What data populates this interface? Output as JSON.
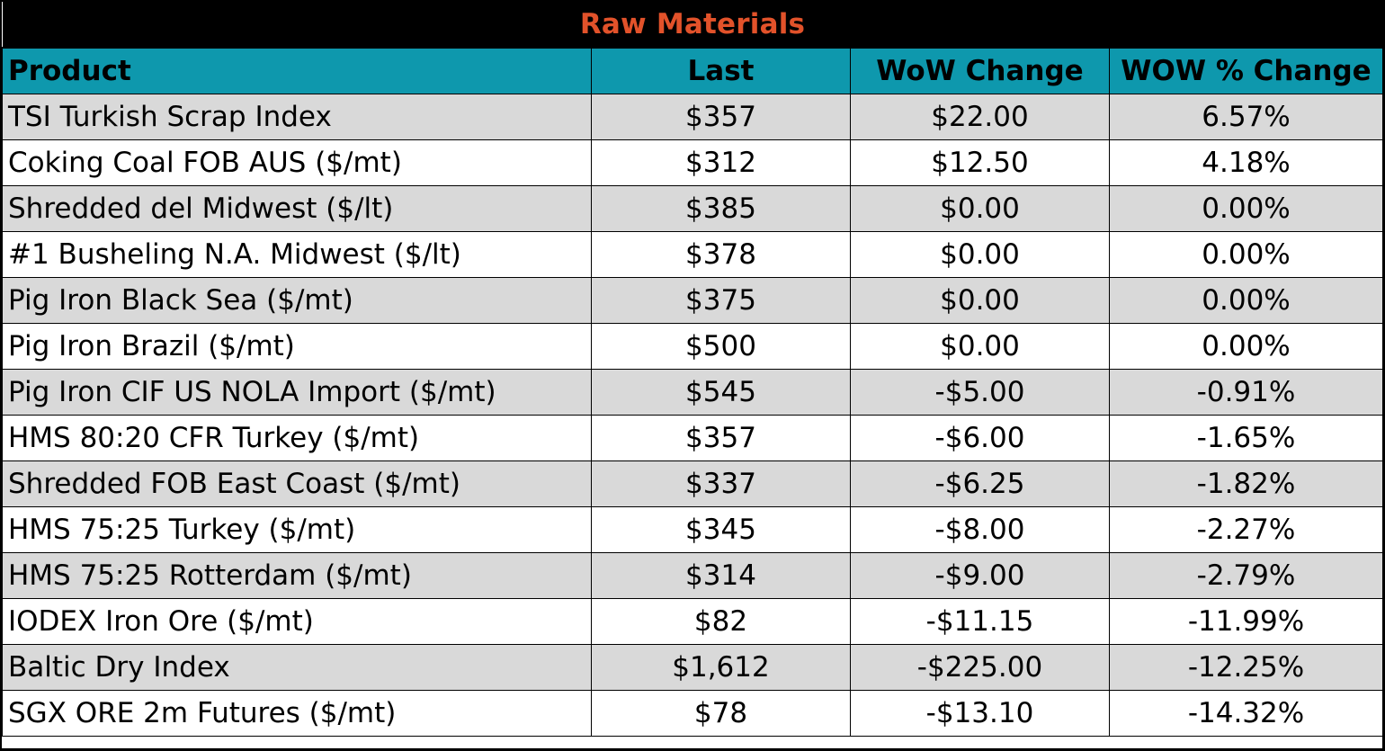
{
  "title": "Raw Materials",
  "colors": {
    "title": "#e2522a",
    "header_bg": "#0e98ad",
    "stripe": "#d9d9d9"
  },
  "headers": {
    "product": "Product",
    "last": "Last",
    "wow_change": "WoW Change",
    "wow_pct_change": "WOW % Change"
  },
  "rows": [
    {
      "product": "TSI Turkish Scrap Index",
      "last": "$357",
      "wow_change": "$22.00",
      "wow_pct_change": "6.57%"
    },
    {
      "product": "Coking Coal FOB AUS ($/mt)",
      "last": "$312",
      "wow_change": "$12.50",
      "wow_pct_change": "4.18%"
    },
    {
      "product": "Shredded del  Midwest ($/lt)",
      "last": "$385",
      "wow_change": "$0.00",
      "wow_pct_change": "0.00%"
    },
    {
      "product": "#1 Busheling N.A. Midwest ($/lt)",
      "last": "$378",
      "wow_change": "$0.00",
      "wow_pct_change": "0.00%"
    },
    {
      "product": "Pig Iron Black Sea ($/mt)",
      "last": "$375",
      "wow_change": "$0.00",
      "wow_pct_change": "0.00%"
    },
    {
      "product": "Pig Iron Brazil ($/mt)",
      "last": "$500",
      "wow_change": "$0.00",
      "wow_pct_change": "0.00%"
    },
    {
      "product": "Pig Iron CIF US NOLA Import ($/mt)",
      "last": "$545",
      "wow_change": "-$5.00",
      "wow_pct_change": "-0.91%"
    },
    {
      "product": "HMS 80:20 CFR Turkey ($/mt)",
      "last": "$357",
      "wow_change": "-$6.00",
      "wow_pct_change": "-1.65%"
    },
    {
      "product": "Shredded FOB East Coast ($/mt)",
      "last": "$337",
      "wow_change": "-$6.25",
      "wow_pct_change": "-1.82%"
    },
    {
      "product": "HMS 75:25 Turkey ($/mt)",
      "last": "$345",
      "wow_change": "-$8.00",
      "wow_pct_change": "-2.27%"
    },
    {
      "product": "HMS 75:25 Rotterdam ($/mt)",
      "last": "$314",
      "wow_change": "-$9.00",
      "wow_pct_change": "-2.79%"
    },
    {
      "product": "IODEX  Iron Ore ($/mt)",
      "last": "$82",
      "wow_change": "-$11.15",
      "wow_pct_change": "-11.99%"
    },
    {
      "product": "Baltic Dry Index",
      "last": "$1,612",
      "wow_change": "-$225.00",
      "wow_pct_change": "-12.25%"
    },
    {
      "product": "SGX ORE 2m Futures ($/mt)",
      "last": "$78",
      "wow_change": "-$13.10",
      "wow_pct_change": "-14.32%"
    }
  ]
}
